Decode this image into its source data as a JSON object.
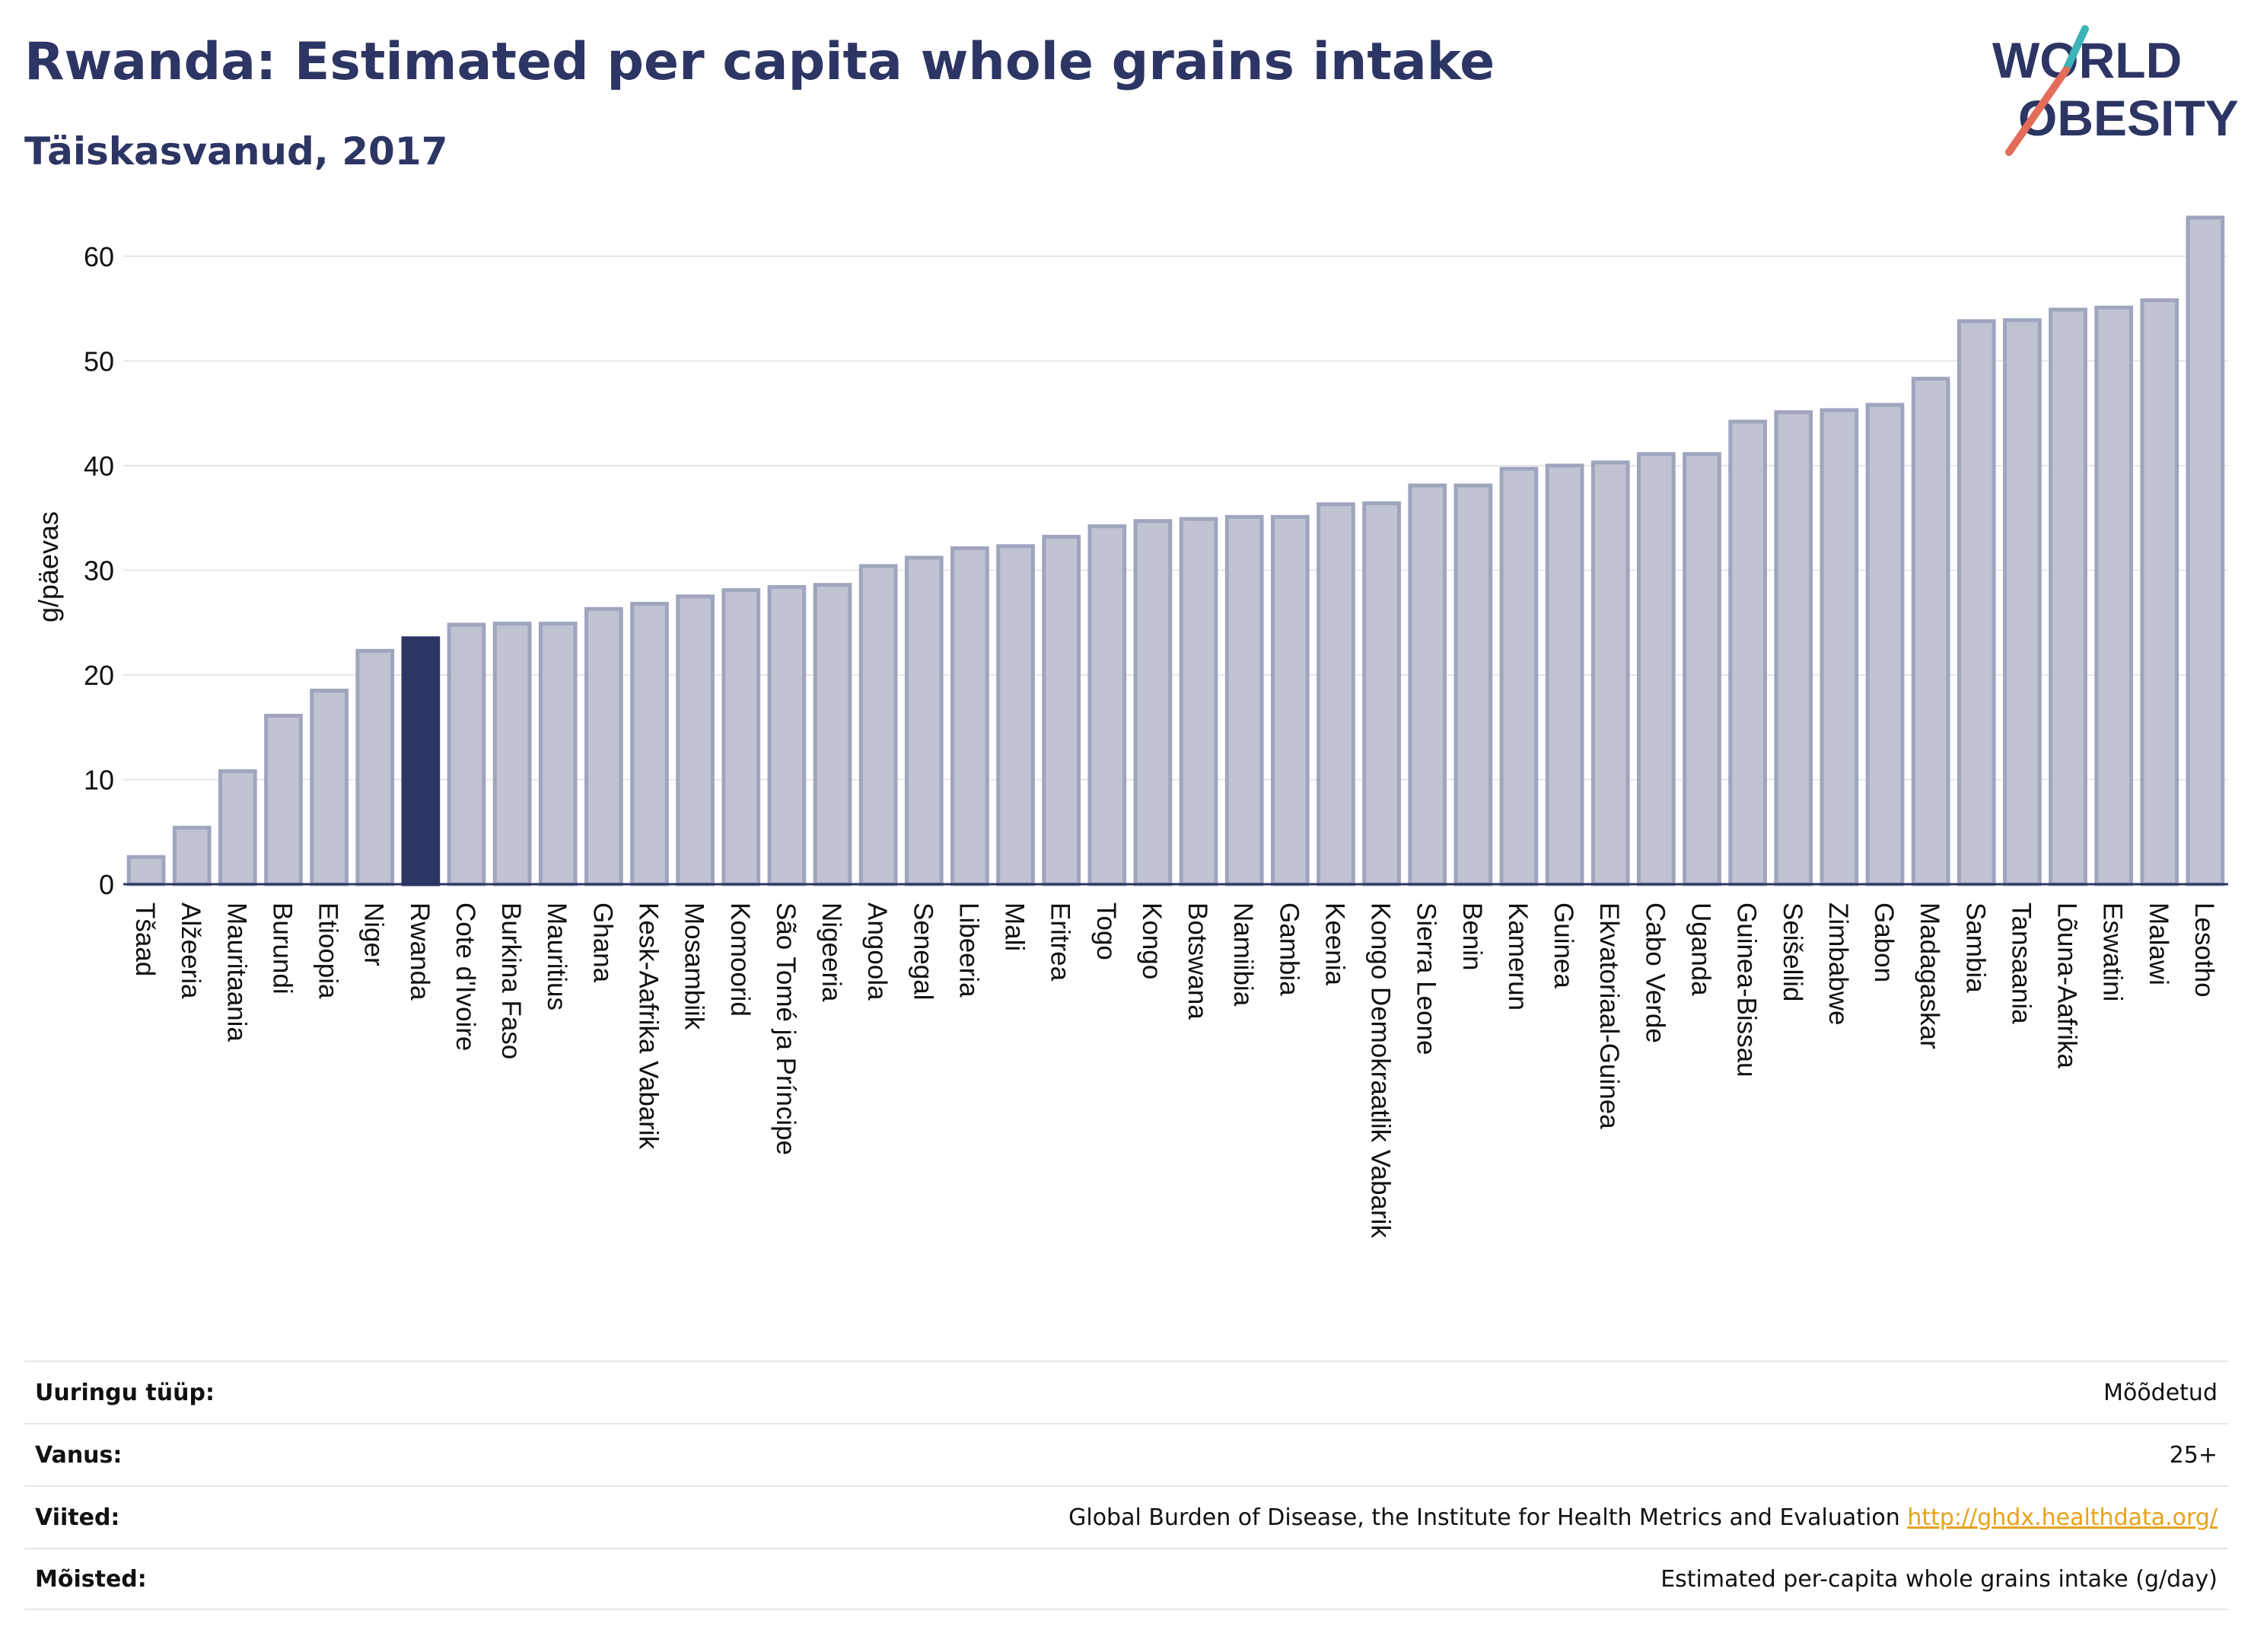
{
  "header": {
    "title": "Rwanda: Estimated per capita whole grains intake",
    "subtitle": "Täiskasvanud, 2017"
  },
  "logo": {
    "line1": "WORLD",
    "line2": "OBESITY"
  },
  "colors": {
    "title": "#2c3563",
    "bar_fill": "#bfc3d2",
    "bar_stroke": "#9fa5bd",
    "highlight": "#2c3563",
    "grid": "#e6e6ea",
    "logo_teal": "#3bb3b8",
    "logo_coral": "#e36c5a",
    "link": "#e8a21b"
  },
  "chart_data": {
    "type": "bar",
    "ylabel": "g/päevas",
    "xlabel": "",
    "ylim": [
      0,
      65
    ],
    "yticks": [
      0,
      10,
      20,
      30,
      40,
      50,
      60
    ],
    "grid": true,
    "highlight": "Rwanda",
    "categories": [
      "Tšaad",
      "Alžeeria",
      "Mauritaania",
      "Burundi",
      "Etioopia",
      "Niger",
      "Rwanda",
      "Cote d'Ivoire",
      "Burkina Faso",
      "Mauritius",
      "Ghana",
      "Kesk-Aafrika Vabarik",
      "Mosambiik",
      "Komoorid",
      "São Tomé ja Príncipe",
      "Nigeeria",
      "Angoola",
      "Senegal",
      "Libeeria",
      "Mali",
      "Eritrea",
      "Togo",
      "Kongo",
      "Botswana",
      "Namiibia",
      "Gambia",
      "Keenia",
      "Kongo Demokraatlik Vabarik",
      "Sierra Leone",
      "Benin",
      "Kamerun",
      "Guinea",
      "Ekvatoriaal-Guinea",
      "Cabo Verde",
      "Uganda",
      "Guinea-Bissau",
      "Seišellid",
      "Zimbabwe",
      "Gabon",
      "Madagaskar",
      "Sambia",
      "Tansaania",
      "Lõuna-Aafrika",
      "Eswatini",
      "Malawi",
      "Lesotho"
    ],
    "values": [
      2.6,
      5.4,
      10.8,
      16.1,
      18.5,
      22.3,
      23.5,
      24.8,
      24.9,
      24.9,
      26.3,
      26.8,
      27.5,
      28.1,
      28.4,
      28.6,
      30.4,
      31.2,
      32.1,
      32.3,
      33.2,
      34.2,
      34.7,
      34.9,
      35.1,
      35.1,
      36.3,
      36.4,
      38.1,
      38.1,
      39.7,
      40.0,
      40.3,
      41.1,
      41.1,
      44.2,
      45.1,
      45.3,
      45.8,
      48.3,
      53.8,
      53.9,
      54.9,
      55.1,
      55.8,
      63.7
    ]
  },
  "info": {
    "rows": [
      {
        "label": "Uuringu tüüp:",
        "value": "Mõõdetud"
      },
      {
        "label": "Vanus:",
        "value": "25+"
      },
      {
        "label": "Viited:",
        "value": "Global Burden of Disease, the Institute for Health Metrics and Evaluation",
        "link": "http://ghdx.healthdata.org/"
      },
      {
        "label": "Mõisted:",
        "value": "Estimated per-capita whole grains intake (g/day)"
      }
    ]
  }
}
